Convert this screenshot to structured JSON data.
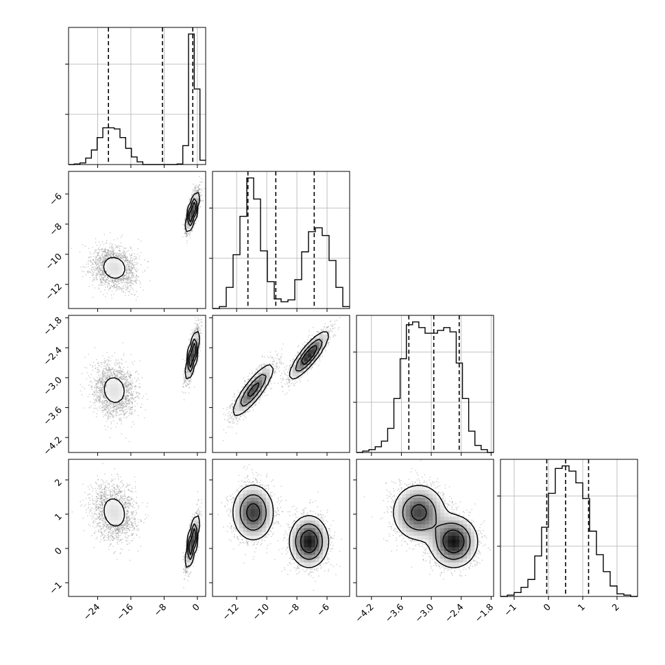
{
  "chart_data": {
    "type": "corner",
    "title": "",
    "grid": true,
    "colors": {
      "line": "#000000",
      "grid": "#b0b0b0",
      "scatter": "#808080",
      "density_dark": "#101010",
      "density_light": "#e0e0e0",
      "background": "#ffffff"
    },
    "parameters": [
      {
        "name": "",
        "range": [
          -31,
          2
        ],
        "ticks": [
          -24,
          -16,
          -8,
          0
        ],
        "tick_labels": [
          "−24",
          "−16",
          "−8",
          "0"
        ],
        "quantiles": [
          -21.4,
          -8.4,
          -1.1
        ],
        "histogram": [
          0,
          0.01,
          0.03,
          0.12,
          0.27,
          0.5,
          0.68,
          0.68,
          0.66,
          0.5,
          0.3,
          0.14,
          0.05,
          0,
          0,
          0,
          0,
          0,
          0,
          0.01,
          0.35,
          2.42,
          1.4,
          0.08
        ]
      },
      {
        "name": "",
        "range": [
          -13.6,
          -4.5
        ],
        "ticks": [
          -12,
          -10,
          -8,
          -6
        ],
        "tick_labels": [
          "−12",
          "−10",
          "−8",
          "−6"
        ],
        "quantiles": [
          -11.25,
          -9.4,
          -6.85
        ],
        "histogram": [
          0,
          0.02,
          0.22,
          0.56,
          0.96,
          1.36,
          1.14,
          0.6,
          0.28,
          0.1,
          0.07,
          0.09,
          0.3,
          0.59,
          0.8,
          0.84,
          0.76,
          0.5,
          0.22,
          0.02
        ]
      },
      {
        "name": "",
        "range": [
          -4.5,
          -1.75
        ],
        "ticks": [
          -4.2,
          -3.6,
          -3.0,
          -2.4,
          -1.8
        ],
        "tick_labels": [
          "−4.2",
          "−3.6",
          "−3.0",
          "−2.4",
          "−1.8"
        ],
        "quantiles": [
          -3.45,
          -2.95,
          -2.44
        ],
        "histogram": [
          0,
          0.01,
          0.02,
          0.04,
          0.08,
          0.17,
          0.38,
          0.66,
          0.9,
          0.92,
          0.88,
          0.84,
          0.84,
          0.86,
          0.88,
          0.85,
          0.63,
          0.38,
          0.15,
          0.05,
          0.02,
          0
        ]
      },
      {
        "name": "",
        "range": [
          -1.4,
          2.6
        ],
        "ticks": [
          -1,
          0,
          1,
          2
        ],
        "tick_labels": [
          "−1",
          "0",
          "1",
          "2"
        ],
        "quantiles": [
          -0.05,
          0.5,
          1.17
        ],
        "histogram": [
          0,
          0.01,
          0.03,
          0.07,
          0.13,
          0.31,
          0.53,
          0.79,
          0.98,
          1.0,
          0.96,
          0.87,
          0.75,
          0.5,
          0.32,
          0.19,
          0.08,
          0.02,
          0.01,
          0
        ]
      }
    ],
    "hist_y_ticks": [
      [
        0,
        1,
        2
      ],
      [
        0,
        0.5,
        1.0
      ],
      [
        0,
        0.2,
        0.4,
        0.6,
        0.8
      ],
      [
        0,
        0.5
      ]
    ],
    "mode_pairs": [
      {
        "modes": [
          {
            "weight": 0.5,
            "mean": [
              -20,
              -10.9,
              -3.25,
              1.05
            ],
            "std": [
              2.6,
              0.7,
              0.27,
              0.42
            ]
          },
          {
            "weight": 0.5,
            "mean": [
              -1.2,
              -7.2,
              -2.55,
              0.2
            ],
            "std": [
              0.75,
              0.65,
              0.24,
              0.38
            ]
          }
        ]
      }
    ],
    "mode_correlations": {
      "mode_1": {
        "1-2": -0.1,
        "1-3": -0.1,
        "1-4": -0.15,
        "2-3": 0.85,
        "2-4": 0,
        "3-4": 0
      },
      "mode_2": {
        "1-2": 0.72,
        "1-3": 0.72,
        "1-4": 0.72,
        "2-3": 0.85,
        "2-4": 0,
        "3-4": 0
      }
    }
  }
}
